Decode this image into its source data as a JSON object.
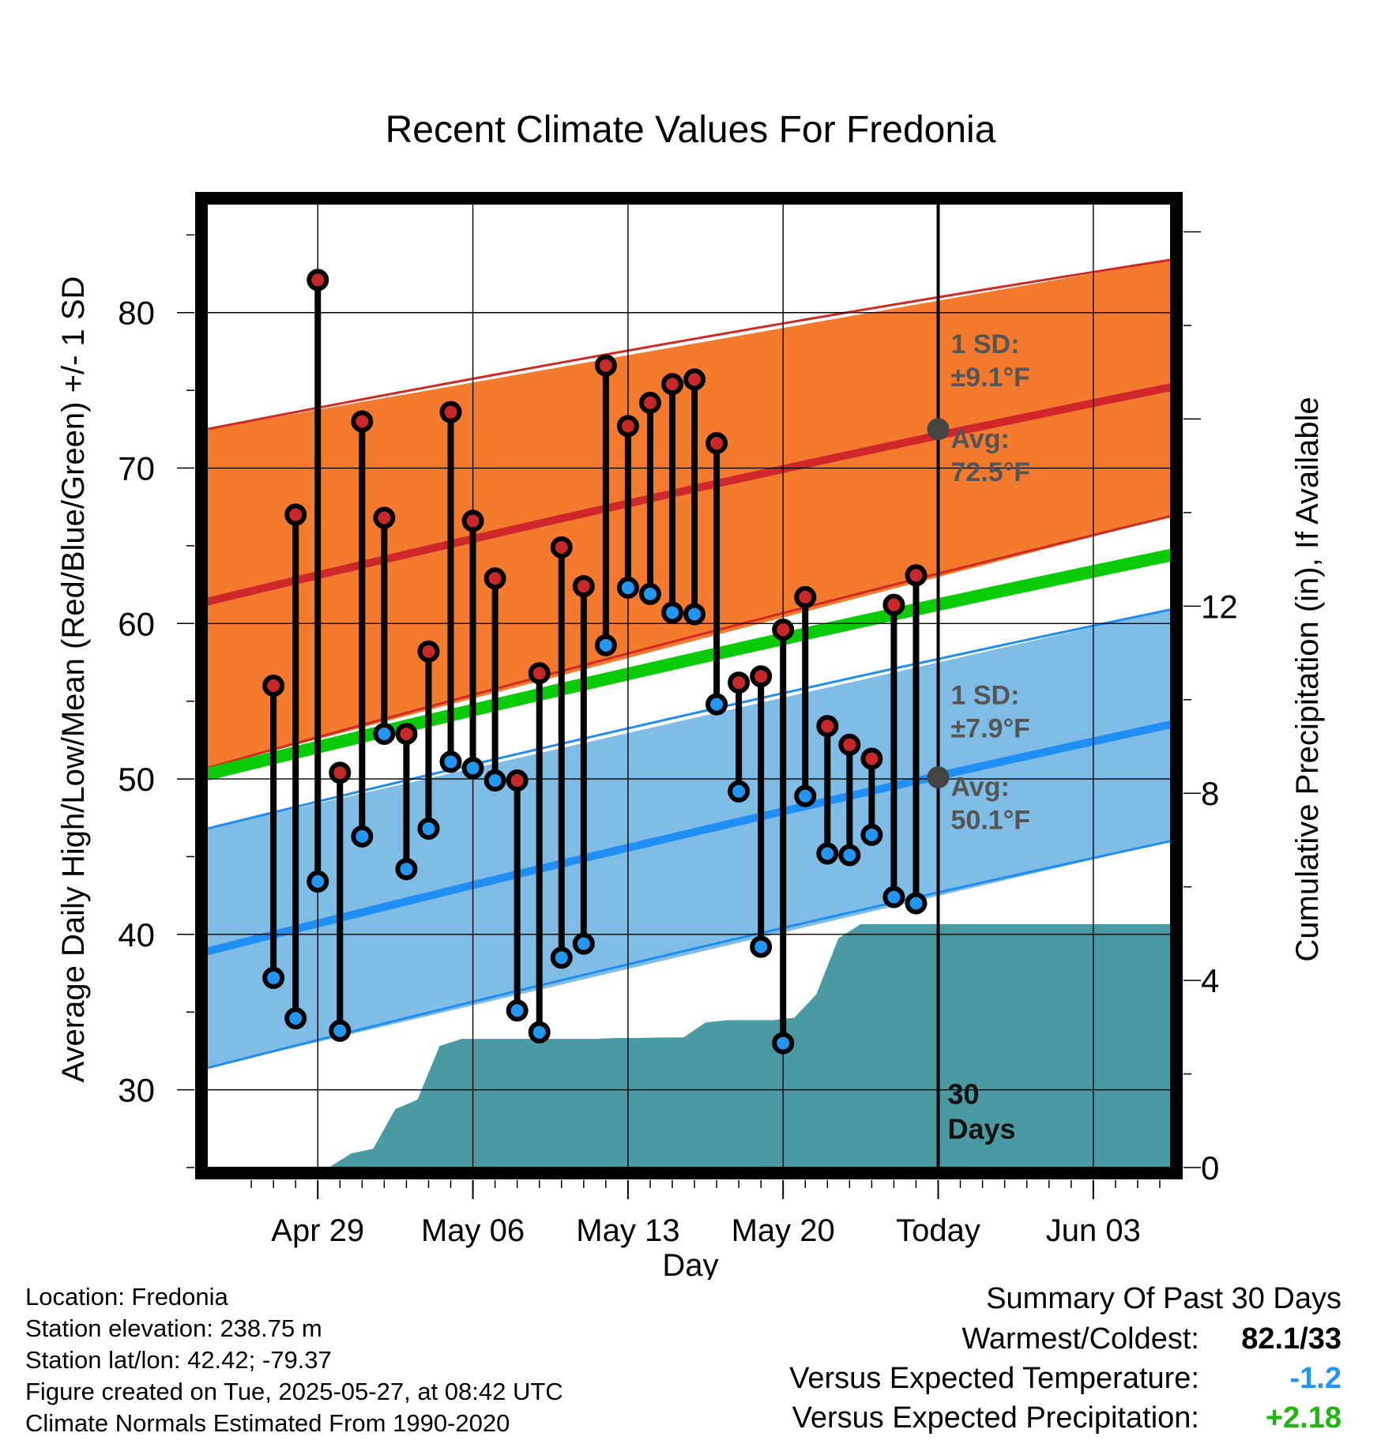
{
  "chart_data": {
    "type": "line",
    "title": "Recent Climate Values For Fredonia",
    "xlabel": "Day",
    "ylabel": "Average Daily High/Low/Mean (Red/Blue/Green) +/- 1 SD",
    "y2label": "Cumulative Precipitation (in), If Available",
    "ylim": [
      25,
      87
    ],
    "y2lim": [
      0,
      20.6
    ],
    "yticks": [
      30,
      40,
      50,
      60,
      70,
      80
    ],
    "y2ticks": [
      0,
      4,
      8,
      12
    ],
    "x_tick_labels": [
      "Apr 29",
      "May 06",
      "May 13",
      "May 20",
      "Today",
      "Jun 03"
    ],
    "grid": true,
    "today_marker_label": "30\nDays",
    "high_normal": {
      "avg_start": 61.4,
      "avg_end": 75.2,
      "sd_upper_start": 72.5,
      "sd_upper_end": 83.4,
      "sd_lower_start": 50.7,
      "sd_lower_end": 66.9,
      "annotation_sd": "1 SD:\n±9.1°F",
      "annotation_avg": "Avg:\n72.5°F",
      "today_avg": 72.5
    },
    "low_normal": {
      "avg_start": 38.9,
      "avg_end": 53.5,
      "sd_upper_start": 46.8,
      "sd_upper_end": 60.9,
      "sd_lower_start": 31.4,
      "sd_lower_end": 46.0,
      "annotation_sd": "1 SD:\n±7.9°F",
      "annotation_avg": "Avg:\n50.1°F",
      "today_avg": 50.1
    },
    "mean_normal": {
      "start": 50.3,
      "end": 64.4
    },
    "daily": {
      "dates": [
        "Apr 27",
        "Apr 28",
        "Apr 29",
        "Apr 30",
        "May 01",
        "May 02",
        "May 03",
        "May 04",
        "May 05",
        "May 06",
        "May 07",
        "May 08",
        "May 09",
        "May 10",
        "May 11",
        "May 12",
        "May 13",
        "May 14",
        "May 15",
        "May 16",
        "May 17",
        "May 18",
        "May 19",
        "May 20",
        "May 21",
        "May 22",
        "May 23",
        "May 24",
        "May 25",
        "May 26"
      ],
      "highs": [
        56.0,
        67.0,
        82.1,
        50.4,
        73.0,
        66.8,
        52.9,
        58.2,
        73.6,
        66.6,
        62.9,
        49.9,
        56.8,
        64.9,
        62.4,
        76.6,
        72.7,
        74.2,
        75.4,
        75.7,
        71.6,
        56.2,
        56.6,
        59.6,
        61.7,
        53.4,
        52.2,
        51.3,
        61.2,
        63.1
      ],
      "lows": [
        37.2,
        34.6,
        43.4,
        33.8,
        46.3,
        52.9,
        44.2,
        46.8,
        51.1,
        50.7,
        49.9,
        35.1,
        33.7,
        38.5,
        39.4,
        58.6,
        62.3,
        61.9,
        60.7,
        60.6,
        54.8,
        49.2,
        39.2,
        33.0,
        48.9,
        45.2,
        45.1,
        46.4,
        42.4,
        42.0
      ]
    },
    "cumulative_precip": {
      "days": [
        2.5,
        3.5,
        4.5,
        5.5,
        6.5,
        7.5,
        8.5,
        9.5,
        10.5,
        11.5,
        12.5,
        13.5,
        14.5,
        15.5,
        16.5,
        17.5,
        18.5,
        19.5,
        20.5,
        21.5,
        22.5,
        23.5,
        24.5,
        25.5,
        26.5,
        27.5,
        28.5,
        29.5,
        30.5,
        31.5,
        32.5,
        33.5,
        34.5,
        35.5,
        36.5,
        37.5,
        38.5,
        39.5,
        40.5,
        41.5,
        42.5
      ],
      "values_in": [
        0.0,
        0.0,
        0.0,
        0.0,
        0.3,
        0.4,
        1.25,
        1.45,
        2.6,
        2.75,
        2.75,
        2.75,
        2.75,
        2.75,
        2.75,
        2.75,
        2.77,
        2.77,
        2.78,
        2.78,
        3.1,
        3.15,
        3.15,
        3.15,
        3.2,
        3.7,
        4.9,
        5.2,
        5.2,
        5.2,
        5.2,
        5.2,
        5.2,
        5.2,
        5.2,
        5.2,
        5.2,
        5.2,
        5.2,
        5.2,
        5.2
      ]
    },
    "colors": {
      "high_band": "#f47a2e",
      "high_edge": "#d12a22",
      "high_avg": "#d0282a",
      "low_band": "#80bde6",
      "low_edge": "#1f8ef0",
      "low_avg": "#1f8ef5",
      "mean": "#09cc07",
      "precip": "#4a9aa3",
      "high_dot": "#c8282a",
      "low_dot": "#2196f3",
      "annotation": "#555555"
    }
  },
  "footer": {
    "location": "Location: Fredonia",
    "elevation": "Station elevation: 238.75 m",
    "latlon": "Station lat/lon: 42.42; -79.37",
    "created": "Figure created on Tue, 2025-05-27, at 08:42 UTC",
    "normals": "Climate Normals Estimated From 1990-2020"
  },
  "summary": {
    "heading": "Summary Of Past 30 Days",
    "warmest_label": "Warmest/Coldest:",
    "warmest_value": "82.1/33",
    "temp_label": "Versus Expected Temperature:",
    "temp_value": "-1.2",
    "temp_color": "#2196f3",
    "precip_label": "Versus Expected Precipitation:",
    "precip_value": "+2.18",
    "precip_color": "#1fb80f"
  }
}
